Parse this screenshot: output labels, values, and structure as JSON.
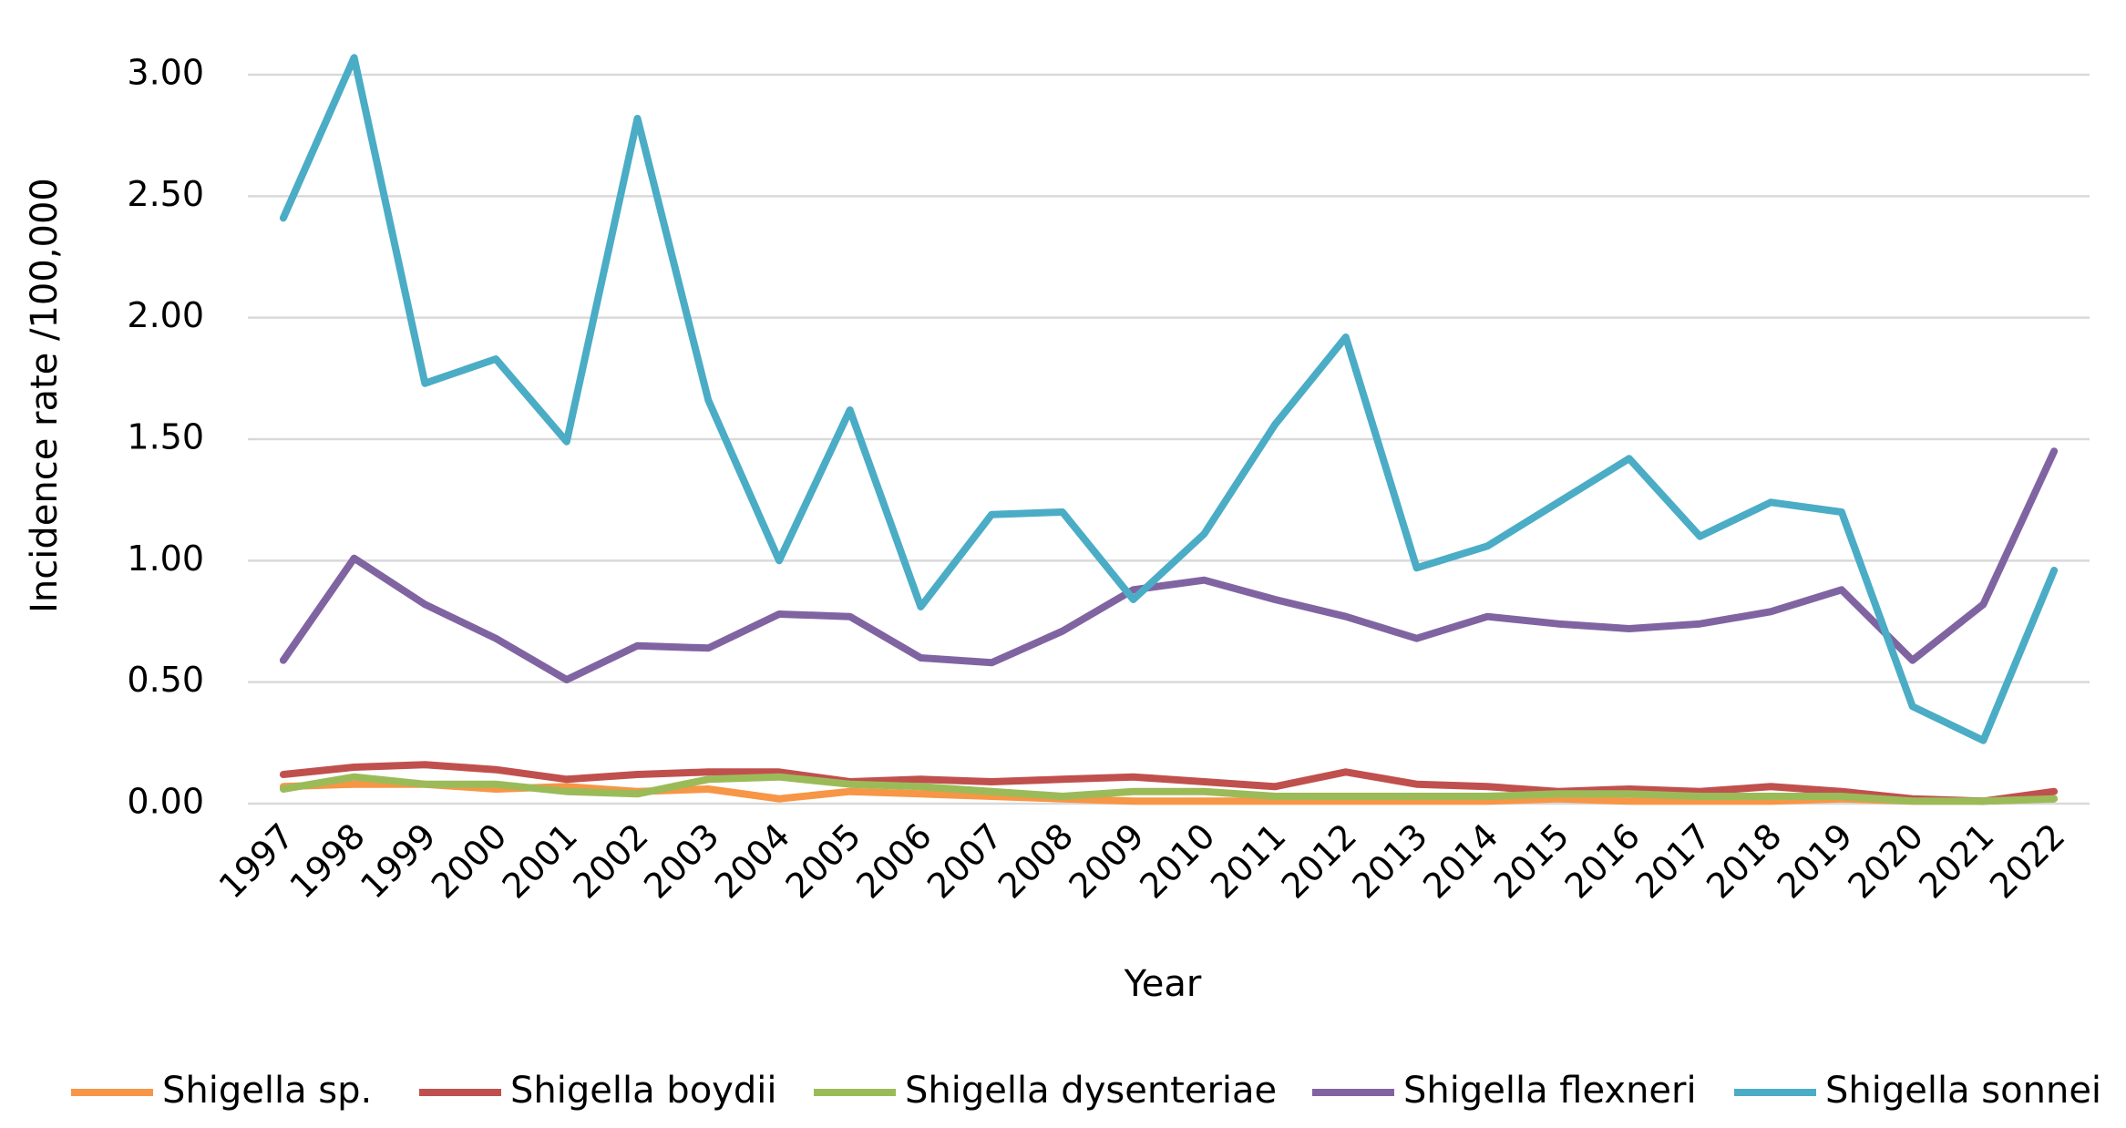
{
  "chart_data": {
    "type": "line",
    "title": "",
    "xlabel": "Year",
    "ylabel": "Incidence rate /100,000",
    "ylim": [
      0,
      3.0
    ],
    "yticks": [
      "0.00",
      "0.50",
      "1.00",
      "1.50",
      "2.00",
      "2.50",
      "3.00"
    ],
    "grid": true,
    "legend_position": "bottom",
    "categories": [
      "1997",
      "1998",
      "1999",
      "2000",
      "2001",
      "2002",
      "2003",
      "2004",
      "2005",
      "2006",
      "2007",
      "2008",
      "2009",
      "2010",
      "2011",
      "2012",
      "2013",
      "2014",
      "2015",
      "2016",
      "2017",
      "2018",
      "2019",
      "2020",
      "2021",
      "2022"
    ],
    "series": [
      {
        "name": "Shigella sp.",
        "color": "#f79646",
        "values": [
          0.07,
          0.08,
          0.08,
          0.06,
          0.07,
          0.05,
          0.06,
          0.02,
          0.05,
          0.04,
          0.03,
          0.02,
          0.01,
          0.01,
          0.01,
          0.01,
          0.01,
          0.01,
          0.02,
          0.01,
          0.01,
          0.01,
          0.02,
          0.01,
          0.01,
          0.02
        ]
      },
      {
        "name": "Shigella boydii",
        "color": "#c0504d",
        "values": [
          0.12,
          0.15,
          0.16,
          0.14,
          0.1,
          0.12,
          0.13,
          0.13,
          0.09,
          0.1,
          0.09,
          0.1,
          0.11,
          0.09,
          0.07,
          0.13,
          0.08,
          0.07,
          0.05,
          0.06,
          0.05,
          0.07,
          0.05,
          0.02,
          0.01,
          0.05
        ]
      },
      {
        "name": "Shigella dysenteriae",
        "color": "#9bbb59",
        "values": [
          0.06,
          0.11,
          0.08,
          0.08,
          0.05,
          0.04,
          0.1,
          0.11,
          0.08,
          0.07,
          0.05,
          0.03,
          0.05,
          0.05,
          0.03,
          0.03,
          0.03,
          0.03,
          0.04,
          0.04,
          0.03,
          0.03,
          0.03,
          0.01,
          0.01,
          0.02
        ]
      },
      {
        "name": "Shigella flexneri",
        "color": "#8064a2",
        "values": [
          0.59,
          1.01,
          0.82,
          0.68,
          0.51,
          0.65,
          0.64,
          0.78,
          0.77,
          0.6,
          0.58,
          0.71,
          0.88,
          0.92,
          0.84,
          0.77,
          0.68,
          0.77,
          0.74,
          0.72,
          0.74,
          0.79,
          0.88,
          0.59,
          0.82,
          1.45
        ]
      },
      {
        "name": "Shigella sonnei",
        "color": "#4bacc6",
        "values": [
          2.41,
          3.07,
          1.73,
          1.83,
          1.49,
          2.82,
          1.66,
          1.0,
          1.62,
          0.81,
          1.19,
          1.2,
          0.84,
          1.11,
          1.56,
          1.92,
          0.97,
          1.06,
          1.24,
          1.42,
          1.1,
          1.24,
          1.2,
          0.4,
          0.26,
          0.96
        ]
      }
    ]
  }
}
